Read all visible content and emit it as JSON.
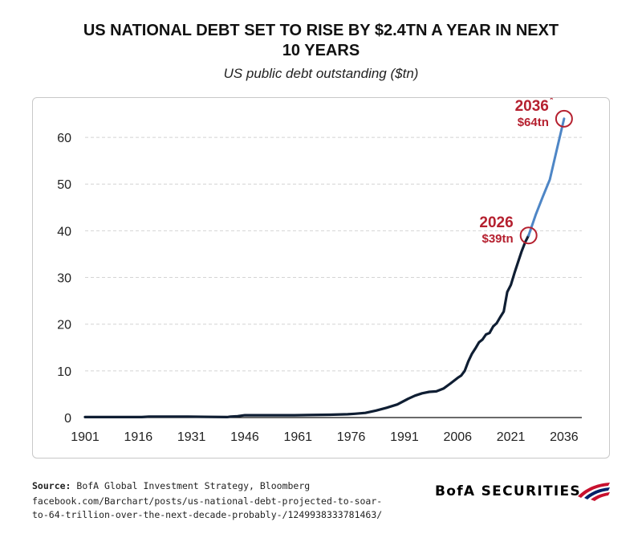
{
  "header": {
    "title_line1": "US NATIONAL DEBT SET TO RISE BY $2.4TN A YEAR IN NEXT",
    "title_line2": "10 YEARS",
    "subtitle": "US public debt outstanding ($tn)"
  },
  "chart_data": {
    "type": "line",
    "title": "US NATIONAL DEBT SET TO RISE BY $2.4TN A YEAR IN NEXT 10 YEARS",
    "subtitle": "US public debt outstanding ($tn)",
    "xlabel": "",
    "ylabel": "",
    "xlim": [
      1901,
      2041
    ],
    "ylim": [
      0,
      65
    ],
    "x_ticks": [
      "1901",
      "1916",
      "1931",
      "1946",
      "1961",
      "1976",
      "1991",
      "2006",
      "2021",
      "2036"
    ],
    "y_ticks": [
      "0",
      "10",
      "20",
      "30",
      "40",
      "50",
      "60"
    ],
    "grid": "horizontal-dashed",
    "series": [
      {
        "name": "",
        "color": "#0f1e33",
        "points": [
          [
            1901,
            0.1
          ],
          [
            1916,
            0.1
          ],
          [
            1917,
            0.1
          ],
          [
            1919,
            0.2
          ],
          [
            1930,
            0.2
          ],
          [
            1941,
            0.1
          ],
          [
            1942,
            0.2
          ],
          [
            1944,
            0.3
          ],
          [
            1946,
            0.5
          ],
          [
            1960,
            0.5
          ],
          [
            1970,
            0.6
          ],
          [
            1975,
            0.7
          ],
          [
            1977,
            0.8
          ],
          [
            1980,
            1.0
          ],
          [
            1983,
            1.5
          ],
          [
            1986,
            2.1
          ],
          [
            1989,
            2.8
          ],
          [
            1992,
            4.0
          ],
          [
            1994,
            4.7
          ],
          [
            1996,
            5.2
          ],
          [
            1998,
            5.5
          ],
          [
            2000,
            5.6
          ],
          [
            2002,
            6.2
          ],
          [
            2004,
            7.3
          ],
          [
            2006,
            8.5
          ],
          [
            2007,
            9.0
          ],
          [
            2008,
            10.0
          ],
          [
            2009,
            12.0
          ],
          [
            2010,
            13.6
          ],
          [
            2011,
            14.8
          ],
          [
            2012,
            16.1
          ],
          [
            2013,
            16.7
          ],
          [
            2014,
            17.8
          ],
          [
            2015,
            18.1
          ],
          [
            2016,
            19.5
          ],
          [
            2017,
            20.2
          ],
          [
            2018,
            21.5
          ],
          [
            2019,
            22.7
          ],
          [
            2020,
            26.9
          ],
          [
            2021,
            28.4
          ],
          [
            2022,
            30.9
          ],
          [
            2023,
            33.2
          ],
          [
            2024,
            35.5
          ],
          [
            2025,
            37.5
          ],
          [
            2026,
            39.0
          ]
        ]
      },
      {
        "name": "",
        "color": "#4e86c6",
        "points": [
          [
            2026,
            39.0
          ],
          [
            2028,
            43.4
          ],
          [
            2030,
            47.3
          ],
          [
            2032,
            51.0
          ],
          [
            2034,
            57.5
          ],
          [
            2036,
            64.0
          ]
        ]
      }
    ],
    "annotations": [
      {
        "x": 2026,
        "y": 39.0,
        "year_label": "2026",
        "value_label": "$39tn",
        "marker": "",
        "color": "#b5202f"
      },
      {
        "x": 2036,
        "y": 64.0,
        "year_label": "2036",
        "value_label": "$64tn",
        "marker": "*",
        "color": "#b5202f"
      }
    ]
  },
  "footer": {
    "source_label": "Source:",
    "source_text": "BofA Global Investment Strategy, Bloomberg",
    "url_line1": "facebook.com/Barchart/posts/us-national-debt-projected-to-soar-",
    "url_line2": "to-64-trillion-over-the-next-decade-probably-/1249938333781463/"
  },
  "brand": {
    "name": "BofA SECURITIES",
    "logo_icon": "bofa-flag-icon",
    "colors": {
      "red": "#c8102e",
      "blue": "#012169"
    }
  }
}
